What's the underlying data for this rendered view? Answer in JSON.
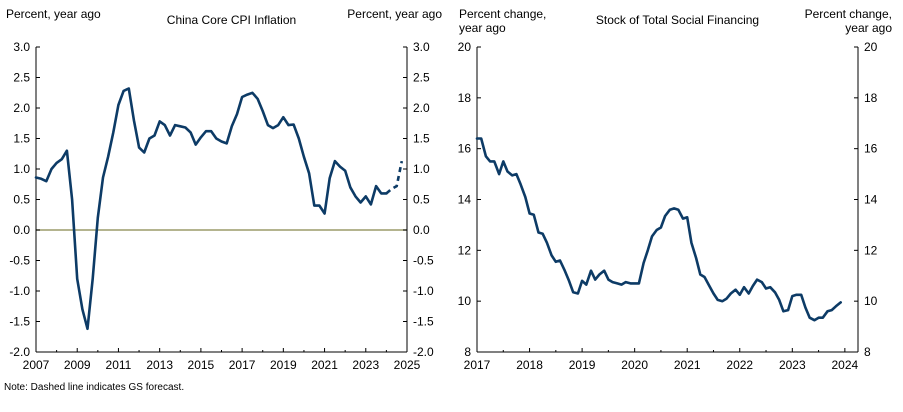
{
  "note": "Note: Dashed line indicates GS forecast.",
  "colors": {
    "series": "#0d3b66",
    "zero_line": "#9c9c6a",
    "axis": "#000000"
  },
  "chart_data": [
    {
      "type": "line",
      "title": "China Core CPI Inflation",
      "left_unit_label": "Percent, year ago",
      "right_unit_label": "Percent, year ago",
      "xlabel": "",
      "ylabel": "Percent, year ago",
      "xlim": [
        2007,
        2025
      ],
      "ylim": [
        -2.0,
        3.0
      ],
      "x_ticks": [
        2007,
        2009,
        2011,
        2013,
        2015,
        2017,
        2019,
        2021,
        2023,
        2025
      ],
      "y_ticks": [
        -2.0,
        -1.5,
        -1.0,
        -0.5,
        0.0,
        0.5,
        1.0,
        1.5,
        2.0,
        2.5,
        3.0
      ],
      "left_tick_labels": [
        "-2.0",
        "-1.5",
        "-1.0",
        "-0.5",
        "0.0",
        "0.5",
        "1.0",
        "1.5",
        "2.0",
        "2.5",
        "3.0"
      ],
      "right_tick_labels": [
        "-2.0",
        "-1.5",
        "-1.0",
        "-0.5",
        "0.0",
        "0.5",
        "1.0",
        "1.5",
        "2.0",
        "2.5",
        "3.0"
      ],
      "x_tick_labels": [
        "2007",
        "2009",
        "2011",
        "2013",
        "2015",
        "2017",
        "2019",
        "2021",
        "2023",
        "2025"
      ],
      "zero_line": 0.0,
      "series": [
        {
          "name": "Core CPI inflation",
          "style": "solid",
          "points": [
            [
              2007.0,
              0.86
            ],
            [
              2007.25,
              0.84
            ],
            [
              2007.5,
              0.8
            ],
            [
              2007.75,
              1.0
            ],
            [
              2008.0,
              1.1
            ],
            [
              2008.25,
              1.16
            ],
            [
              2008.5,
              1.3
            ],
            [
              2008.75,
              0.5
            ],
            [
              2009.0,
              -0.8
            ],
            [
              2009.25,
              -1.3
            ],
            [
              2009.5,
              -1.62
            ],
            [
              2009.75,
              -0.8
            ],
            [
              2010.0,
              0.2
            ],
            [
              2010.25,
              0.86
            ],
            [
              2010.5,
              1.2
            ],
            [
              2010.75,
              1.6
            ],
            [
              2011.0,
              2.05
            ],
            [
              2011.25,
              2.28
            ],
            [
              2011.5,
              2.32
            ],
            [
              2011.75,
              1.8
            ],
            [
              2012.0,
              1.35
            ],
            [
              2012.25,
              1.27
            ],
            [
              2012.5,
              1.5
            ],
            [
              2012.75,
              1.55
            ],
            [
              2013.0,
              1.78
            ],
            [
              2013.25,
              1.72
            ],
            [
              2013.5,
              1.55
            ],
            [
              2013.75,
              1.72
            ],
            [
              2014.0,
              1.7
            ],
            [
              2014.25,
              1.68
            ],
            [
              2014.5,
              1.6
            ],
            [
              2014.75,
              1.4
            ],
            [
              2015.0,
              1.52
            ],
            [
              2015.25,
              1.62
            ],
            [
              2015.5,
              1.62
            ],
            [
              2015.75,
              1.5
            ],
            [
              2016.0,
              1.45
            ],
            [
              2016.25,
              1.42
            ],
            [
              2016.5,
              1.7
            ],
            [
              2016.75,
              1.9
            ],
            [
              2017.0,
              2.18
            ],
            [
              2017.25,
              2.22
            ],
            [
              2017.5,
              2.25
            ],
            [
              2017.75,
              2.15
            ],
            [
              2018.0,
              1.95
            ],
            [
              2018.25,
              1.72
            ],
            [
              2018.5,
              1.67
            ],
            [
              2018.75,
              1.72
            ],
            [
              2019.0,
              1.85
            ],
            [
              2019.25,
              1.72
            ],
            [
              2019.5,
              1.73
            ],
            [
              2019.75,
              1.5
            ],
            [
              2020.0,
              1.2
            ],
            [
              2020.25,
              0.93
            ],
            [
              2020.5,
              0.4
            ],
            [
              2020.75,
              0.4
            ],
            [
              2021.0,
              0.27
            ],
            [
              2021.25,
              0.85
            ],
            [
              2021.5,
              1.13
            ],
            [
              2021.75,
              1.04
            ],
            [
              2022.0,
              0.97
            ],
            [
              2022.25,
              0.7
            ],
            [
              2022.5,
              0.55
            ],
            [
              2022.75,
              0.45
            ],
            [
              2023.0,
              0.55
            ],
            [
              2023.25,
              0.42
            ],
            [
              2023.5,
              0.72
            ],
            [
              2023.75,
              0.6
            ],
            [
              2024.0,
              0.6
            ]
          ]
        },
        {
          "name": "GS forecast",
          "style": "dashed",
          "points": [
            [
              2024.0,
              0.6
            ],
            [
              2024.25,
              0.67
            ],
            [
              2024.5,
              0.72
            ],
            [
              2024.75,
              1.13
            ]
          ]
        }
      ]
    },
    {
      "type": "line",
      "title": "Stock of Total Social Financing",
      "left_unit_label": "Percent change, year ago",
      "right_unit_label": "Percent change, year ago",
      "xlabel": "",
      "ylabel": "Percent change, year ago",
      "xlim": [
        2017,
        2024.25
      ],
      "ylim": [
        8,
        20
      ],
      "x_ticks": [
        2017,
        2018,
        2019,
        2020,
        2021,
        2022,
        2023,
        2024
      ],
      "y_ticks": [
        8,
        10,
        12,
        14,
        16,
        18,
        20
      ],
      "left_tick_labels": [
        "8",
        "10",
        "12",
        "14",
        "16",
        "18",
        "20"
      ],
      "right_tick_labels": [
        "8",
        "10",
        "12",
        "14",
        "16",
        "18",
        "20"
      ],
      "x_tick_labels": [
        "2017",
        "2018",
        "2019",
        "2020",
        "2021",
        "2022",
        "2023",
        "2024"
      ],
      "series": [
        {
          "name": "Total social financing stock growth",
          "style": "solid",
          "points": [
            [
              2017.0,
              16.4
            ],
            [
              2017.08,
              16.4
            ],
            [
              2017.17,
              15.7
            ],
            [
              2017.25,
              15.5
            ],
            [
              2017.33,
              15.5
            ],
            [
              2017.42,
              15.0
            ],
            [
              2017.5,
              15.5
            ],
            [
              2017.58,
              15.1
            ],
            [
              2017.67,
              14.95
            ],
            [
              2017.75,
              15.0
            ],
            [
              2017.83,
              14.6
            ],
            [
              2017.92,
              14.1
            ],
            [
              2018.0,
              13.45
            ],
            [
              2018.08,
              13.4
            ],
            [
              2018.17,
              12.7
            ],
            [
              2018.25,
              12.65
            ],
            [
              2018.33,
              12.3
            ],
            [
              2018.42,
              11.8
            ],
            [
              2018.5,
              11.55
            ],
            [
              2018.58,
              11.6
            ],
            [
              2018.67,
              11.2
            ],
            [
              2018.75,
              10.8
            ],
            [
              2018.83,
              10.35
            ],
            [
              2018.92,
              10.3
            ],
            [
              2019.0,
              10.8
            ],
            [
              2019.08,
              10.65
            ],
            [
              2019.17,
              11.2
            ],
            [
              2019.25,
              10.85
            ],
            [
              2019.33,
              11.05
            ],
            [
              2019.42,
              11.2
            ],
            [
              2019.5,
              10.85
            ],
            [
              2019.58,
              10.75
            ],
            [
              2019.67,
              10.7
            ],
            [
              2019.75,
              10.65
            ],
            [
              2019.83,
              10.75
            ],
            [
              2019.92,
              10.7
            ],
            [
              2020.0,
              10.7
            ],
            [
              2020.08,
              10.7
            ],
            [
              2020.17,
              11.5
            ],
            [
              2020.25,
              12.0
            ],
            [
              2020.33,
              12.55
            ],
            [
              2020.42,
              12.8
            ],
            [
              2020.5,
              12.9
            ],
            [
              2020.58,
              13.35
            ],
            [
              2020.67,
              13.6
            ],
            [
              2020.75,
              13.65
            ],
            [
              2020.83,
              13.6
            ],
            [
              2020.92,
              13.25
            ],
            [
              2021.0,
              13.3
            ],
            [
              2021.08,
              12.3
            ],
            [
              2021.17,
              11.7
            ],
            [
              2021.25,
              11.05
            ],
            [
              2021.33,
              10.95
            ],
            [
              2021.42,
              10.6
            ],
            [
              2021.5,
              10.3
            ],
            [
              2021.58,
              10.05
            ],
            [
              2021.67,
              10.0
            ],
            [
              2021.75,
              10.1
            ],
            [
              2021.83,
              10.3
            ],
            [
              2021.92,
              10.45
            ],
            [
              2022.0,
              10.25
            ],
            [
              2022.08,
              10.55
            ],
            [
              2022.17,
              10.3
            ],
            [
              2022.25,
              10.6
            ],
            [
              2022.33,
              10.85
            ],
            [
              2022.42,
              10.75
            ],
            [
              2022.5,
              10.5
            ],
            [
              2022.58,
              10.55
            ],
            [
              2022.67,
              10.35
            ],
            [
              2022.75,
              10.05
            ],
            [
              2022.83,
              9.6
            ],
            [
              2022.92,
              9.65
            ],
            [
              2023.0,
              10.2
            ],
            [
              2023.08,
              10.25
            ],
            [
              2023.17,
              10.25
            ],
            [
              2023.25,
              9.75
            ],
            [
              2023.33,
              9.35
            ],
            [
              2023.42,
              9.25
            ],
            [
              2023.5,
              9.35
            ],
            [
              2023.58,
              9.35
            ],
            [
              2023.67,
              9.6
            ],
            [
              2023.75,
              9.65
            ],
            [
              2023.83,
              9.8
            ],
            [
              2023.92,
              9.95
            ]
          ]
        }
      ]
    }
  ]
}
